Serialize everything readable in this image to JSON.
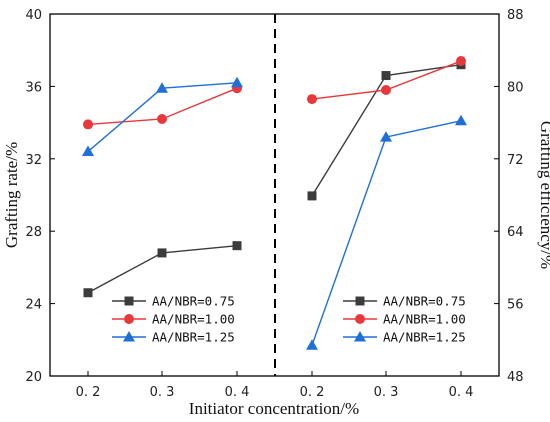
{
  "chart_data": {
    "type": "line",
    "xlabel": "Initiator concentration/%",
    "ylabel_left": "Grafting rate/%",
    "ylabel_right": "Grafting efficiency/%",
    "panels": [
      {
        "measure": "Grafting rate/%",
        "axis": "left",
        "ylim": [
          20,
          40
        ],
        "yticks": [
          20,
          24,
          28,
          32,
          36,
          40
        ],
        "x": [
          "0.2",
          "0.3",
          "0.4"
        ],
        "series": [
          {
            "name": "AA/NBR=0.75",
            "color": "#3c3c3c",
            "marker": "square",
            "values": [
              24.6,
              26.8,
              27.2
            ]
          },
          {
            "name": "AA/NBR=1.00",
            "color": "#e8383c",
            "marker": "circle",
            "values": [
              33.9,
              34.2,
              35.9
            ]
          },
          {
            "name": "AA/NBR=1.25",
            "color": "#1f6fd6",
            "marker": "triangle",
            "values": [
              32.4,
              35.9,
              36.2
            ]
          }
        ]
      },
      {
        "measure": "Grafting efficiency/%",
        "axis": "right",
        "ylim": [
          48,
          88
        ],
        "yticks": [
          48,
          56,
          64,
          72,
          80,
          88
        ],
        "x": [
          "0.2",
          "0.3",
          "0.4"
        ],
        "series": [
          {
            "name": "AA/NBR=0.75",
            "color": "#3c3c3c",
            "marker": "square",
            "values": [
              67.9,
              81.2,
              82.4
            ]
          },
          {
            "name": "AA/NBR=1.00",
            "color": "#e8383c",
            "marker": "circle",
            "values": [
              78.6,
              79.6,
              82.8
            ]
          },
          {
            "name": "AA/NBR=1.25",
            "color": "#1f6fd6",
            "marker": "triangle",
            "values": [
              51.4,
              74.4,
              76.2
            ]
          }
        ]
      }
    ],
    "legend_position": "bottom-left of each panel",
    "divider": "dashed vertical line between panels",
    "grid": false
  }
}
